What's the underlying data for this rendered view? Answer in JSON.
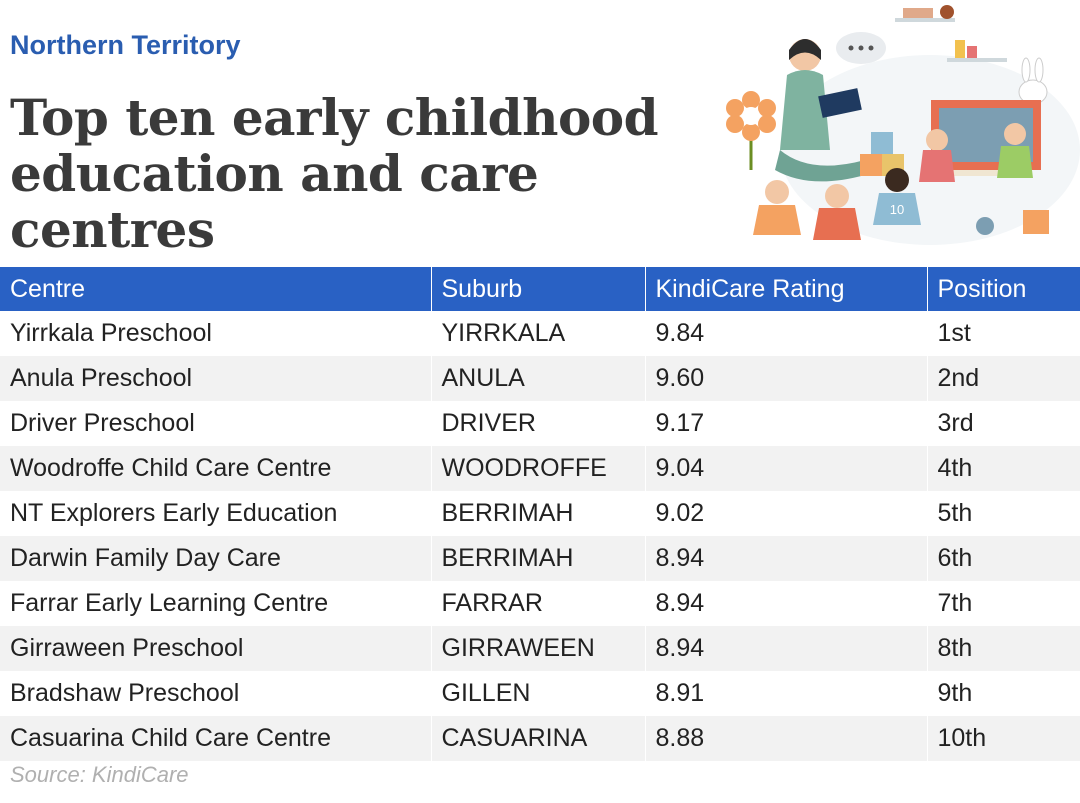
{
  "header": {
    "region": "Northern Territory",
    "title": "Top ten early childhood education and care centres"
  },
  "table": {
    "columns": [
      "Centre",
      "Suburb",
      "KindiCare Rating",
      "Position"
    ],
    "rows": [
      {
        "centre": "Yirrkala Preschool",
        "suburb": "YIRRKALA",
        "rating": "9.84",
        "position": "1st"
      },
      {
        "centre": "Anula Preschool",
        "suburb": "ANULA",
        "rating": "9.60",
        "position": "2nd"
      },
      {
        "centre": "Driver Preschool",
        "suburb": "DRIVER",
        "rating": "9.17",
        "position": "3rd"
      },
      {
        "centre": "Woodroffe Child Care Centre",
        "suburb": "WOODROFFE",
        "rating": "9.04",
        "position": "4th"
      },
      {
        "centre": "NT Explorers Early Education",
        "suburb": "BERRIMAH",
        "rating": "9.02",
        "position": "5th"
      },
      {
        "centre": "Darwin Family Day Care",
        "suburb": "BERRIMAH",
        "rating": "8.94",
        "position": "6th"
      },
      {
        "centre": "Farrar Early Learning Centre",
        "suburb": "FARRAR",
        "rating": "8.94",
        "position": "7th"
      },
      {
        "centre": "Girraween Preschool",
        "suburb": "GIRRAWEEN",
        "rating": "8.94",
        "position": "8th"
      },
      {
        "centre": "Bradshaw Preschool",
        "suburb": "GILLEN",
        "rating": "8.91",
        "position": "9th"
      },
      {
        "centre": "Casuarina Child Care Centre",
        "suburb": "CASUARINA",
        "rating": "8.88",
        "position": "10th"
      }
    ]
  },
  "footer": {
    "source": "Source: KindiCare"
  },
  "colors": {
    "accent": "#2961c4",
    "region_text": "#2a5db0",
    "title_text": "#3a3a3a",
    "row_alt": "#f2f2f2",
    "source_text": "#b0b0b0"
  },
  "illustration": {
    "icon": "classroom-illustration-icon",
    "jersey_number": "10"
  }
}
